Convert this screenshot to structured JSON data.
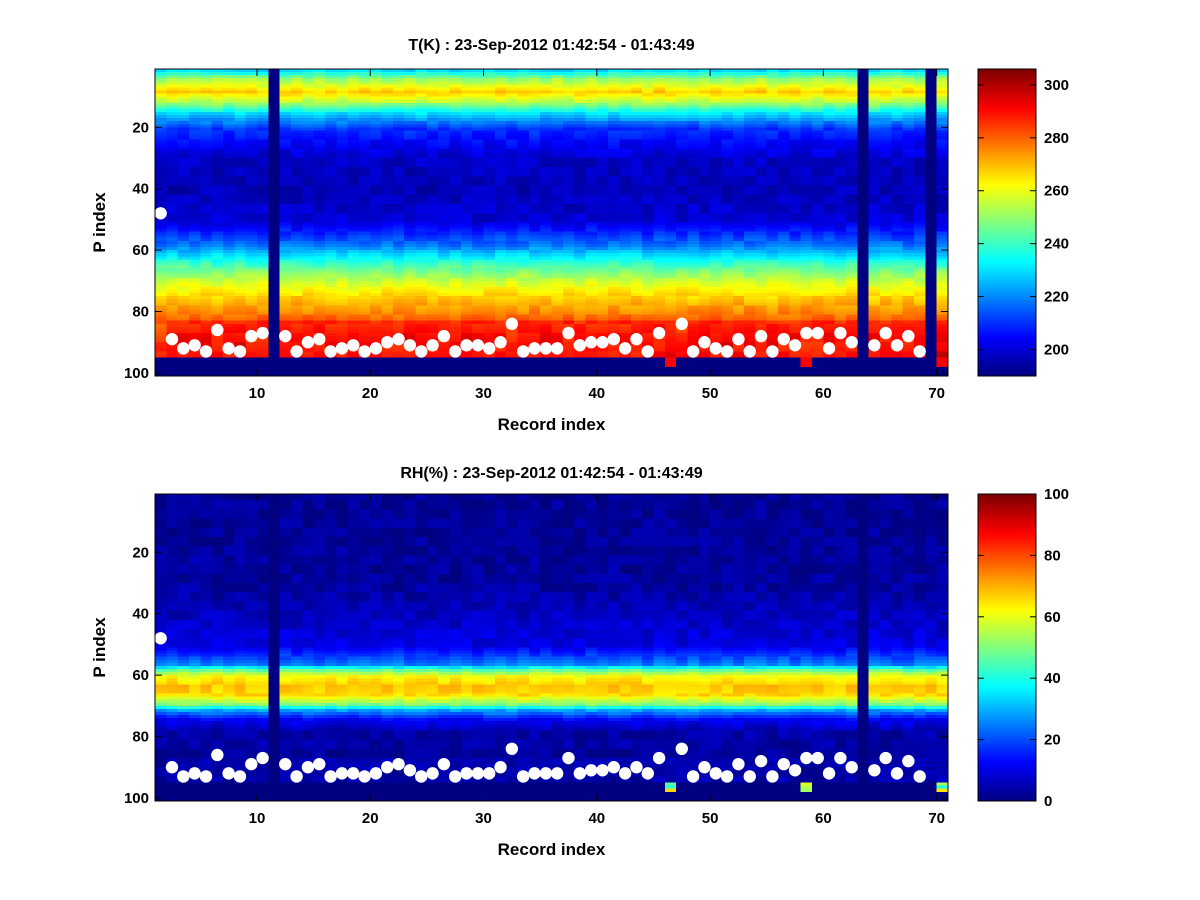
{
  "chart_data": [
    {
      "type": "heatmap",
      "title": "T(K) : 23-Sep-2012 01:42:54 - 01:43:49",
      "xlabel": "Record index",
      "ylabel": "P index",
      "xlim": [
        1,
        71
      ],
      "ylim": [
        1,
        101
      ],
      "y_reversed": true,
      "x_ticks": [
        10,
        20,
        30,
        40,
        50,
        60,
        70
      ],
      "y_ticks": [
        20,
        40,
        60,
        80,
        100
      ],
      "colorbar": {
        "min": 190,
        "max": 306,
        "ticks": [
          200,
          220,
          240,
          260,
          280,
          300
        ]
      },
      "colormap": "jet",
      "profile_knots": [
        [
          1,
          230
        ],
        [
          4,
          252
        ],
        [
          8,
          268
        ],
        [
          11,
          255
        ],
        [
          15,
          230
        ],
        [
          20,
          210
        ],
        [
          30,
          198
        ],
        [
          40,
          196
        ],
        [
          50,
          200
        ],
        [
          58,
          218
        ],
        [
          64,
          240
        ],
        [
          70,
          258
        ],
        [
          76,
          270
        ],
        [
          82,
          280
        ],
        [
          88,
          286
        ],
        [
          94,
          290
        ]
      ],
      "surface_marker_p": [
        48,
        89,
        92,
        91,
        93,
        86,
        92,
        93,
        88,
        87,
        0,
        88,
        93,
        90,
        89,
        93,
        92,
        91,
        93,
        92,
        90,
        89,
        91,
        93,
        91,
        88,
        93,
        91,
        91,
        92,
        90,
        84,
        93,
        92,
        92,
        92,
        87,
        91,
        90,
        90,
        89,
        92,
        89,
        93,
        87,
        0,
        84,
        93,
        90,
        92,
        93,
        89,
        93,
        88,
        93,
        89,
        91,
        87,
        87,
        92,
        87,
        90,
        0,
        91,
        87,
        91,
        88,
        93,
        0,
        0
      ],
      "missing_records": [
        11,
        63,
        69
      ],
      "hot_bottom_records": [
        46,
        58,
        70
      ]
    },
    {
      "type": "heatmap",
      "title": "RH(%) : 23-Sep-2012 01:42:54 - 01:43:49",
      "xlabel": "Record index",
      "ylabel": "P index",
      "xlim": [
        1,
        71
      ],
      "ylim": [
        1,
        101
      ],
      "y_reversed": true,
      "x_ticks": [
        10,
        20,
        30,
        40,
        50,
        60,
        70
      ],
      "y_ticks": [
        20,
        40,
        60,
        80,
        100
      ],
      "colorbar": {
        "min": 0,
        "max": 100,
        "ticks": [
          0,
          20,
          40,
          60,
          80,
          100
        ]
      },
      "colormap": "jet",
      "profile_knots": [
        [
          1,
          2
        ],
        [
          30,
          3
        ],
        [
          40,
          6
        ],
        [
          50,
          10
        ],
        [
          56,
          25
        ],
        [
          58,
          48
        ],
        [
          60,
          62
        ],
        [
          63,
          68
        ],
        [
          66,
          66
        ],
        [
          69,
          50
        ],
        [
          71,
          28
        ],
        [
          74,
          12
        ],
        [
          78,
          4
        ],
        [
          85,
          3
        ],
        [
          94,
          4
        ]
      ],
      "surface_marker_p": [
        48,
        90,
        93,
        92,
        93,
        86,
        92,
        93,
        89,
        87,
        0,
        89,
        93,
        90,
        89,
        93,
        92,
        92,
        93,
        92,
        90,
        89,
        91,
        93,
        92,
        89,
        93,
        92,
        92,
        92,
        90,
        84,
        93,
        92,
        92,
        92,
        87,
        92,
        91,
        91,
        90,
        92,
        90,
        92,
        87,
        0,
        84,
        93,
        90,
        92,
        93,
        89,
        93,
        88,
        93,
        89,
        91,
        87,
        87,
        92,
        87,
        90,
        0,
        91,
        87,
        92,
        88,
        93,
        0,
        0
      ],
      "missing_records": [
        11,
        63
      ],
      "hot_bottom_records": [
        46,
        58,
        70
      ]
    }
  ]
}
